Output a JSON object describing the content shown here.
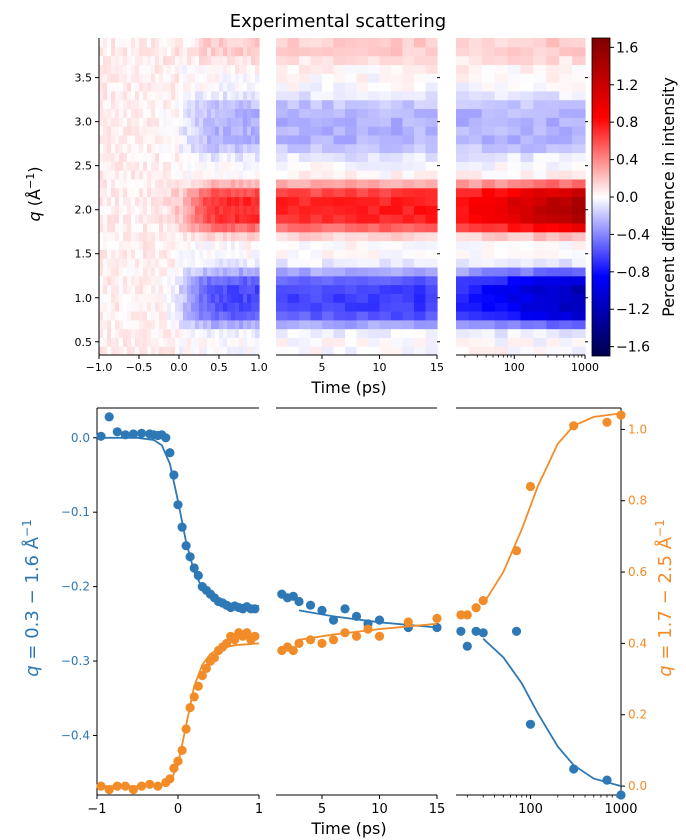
{
  "figure": {
    "title": "Experimental scattering",
    "xlabel_top": "Time (ps)",
    "xlabel_bottom": "Time (ps)"
  },
  "chart_data": [
    {
      "type": "heatmap",
      "title": "Experimental scattering",
      "xlabel": "Time (ps)",
      "ylabel": "q (Å⁻¹)",
      "colorbar_label": "Percent difference in intensity",
      "ylim": [
        0.35,
        3.95
      ],
      "colorbar_range": [
        -1.7,
        1.7
      ],
      "colorbar_ticks": [
        1.6,
        1.2,
        0.8,
        0.4,
        0.0,
        -0.4,
        -0.8,
        -1.2,
        -1.6
      ],
      "colorbar_tick_labels": [
        "1.6",
        "1.2",
        "0.8",
        "0.4",
        "0.0",
        "−0.4",
        "−0.8",
        "−1.2",
        "−1.6"
      ],
      "y_ticks": [
        0.5,
        1.0,
        1.5,
        2.0,
        2.5,
        3.0,
        3.5
      ],
      "y_tick_labels": [
        "0.5",
        "1.0",
        "1.5",
        "2.0",
        "2.5",
        "3.0",
        "3.5"
      ],
      "panels": [
        {
          "scale": "linear",
          "xlim": [
            -1,
            1
          ],
          "ticks": [
            -1,
            -0.5,
            0,
            0.5,
            1
          ],
          "tick_labels": [
            "−1.0",
            "−0.5",
            "0.0",
            "0.5",
            "1.0"
          ]
        },
        {
          "scale": "linear",
          "xlim": [
            1,
            15
          ],
          "ticks": [
            5,
            10,
            15
          ],
          "tick_labels": [
            "5",
            "10",
            "15"
          ]
        },
        {
          "scale": "log",
          "xlim": [
            15,
            1000
          ],
          "ticks": [
            100,
            1000
          ],
          "tick_labels": [
            "100",
            "1000"
          ]
        }
      ],
      "colormap": "seismic (blue-white-red)",
      "bands": [
        {
          "q_range": [
            0.35,
            1.5
          ],
          "sign": "negative",
          "max_abs": -1.5
        },
        {
          "q_range": [
            1.65,
            2.45
          ],
          "sign": "positive",
          "max_abs": 1.6
        },
        {
          "q_range": [
            2.55,
            3.35
          ],
          "sign": "negative",
          "max_abs": -0.4
        },
        {
          "q_range": [
            3.6,
            3.95
          ],
          "sign": "positive",
          "max_abs": 0.3
        }
      ]
    },
    {
      "type": "scatter",
      "xlabel": "Time (ps)",
      "ylabel_left": "q = 0.3 − 1.6 Å⁻¹",
      "ylabel_right": "q = 1.7 − 2.5 Å⁻¹",
      "ylim_left": [
        -0.48,
        0.04
      ],
      "ylim_right": [
        -0.025,
        1.06
      ],
      "y_ticks_left": [
        0.0,
        -0.1,
        -0.2,
        -0.3,
        -0.4
      ],
      "y_tick_labels_left": [
        "0.0",
        "−0.1",
        "−0.2",
        "−0.3",
        "−0.4"
      ],
      "y_ticks_right": [
        0.0,
        0.2,
        0.4,
        0.6,
        0.8,
        1.0
      ],
      "y_tick_labels_right": [
        "0.0",
        "0.2",
        "0.4",
        "0.6",
        "0.8",
        "1.0"
      ],
      "panels": [
        {
          "scale": "linear",
          "xlim": [
            -1,
            1
          ],
          "ticks": [
            -1,
            0,
            1
          ],
          "tick_labels": [
            "−1",
            "0",
            "1"
          ]
        },
        {
          "scale": "linear",
          "xlim": [
            1,
            15
          ],
          "ticks": [
            5,
            10,
            15
          ],
          "tick_labels": [
            "5",
            "10",
            "15"
          ]
        },
        {
          "scale": "log",
          "xlim": [
            15,
            1000
          ],
          "ticks": [
            100,
            1000
          ],
          "tick_labels": [
            "100",
            "1000"
          ]
        }
      ],
      "colors": {
        "blue": "#2e79b5",
        "orange": "#f28c28"
      },
      "series": [
        {
          "axis": "left",
          "color": "#2e79b5",
          "x": [
            -0.95,
            -0.85,
            -0.75,
            -0.65,
            -0.55,
            -0.45,
            -0.35,
            -0.3,
            -0.25,
            -0.2,
            -0.15,
            -0.1,
            -0.05,
            0.0,
            0.05,
            0.1,
            0.15,
            0.2,
            0.25,
            0.3,
            0.35,
            0.4,
            0.45,
            0.5,
            0.55,
            0.6,
            0.65,
            0.7,
            0.75,
            0.8,
            0.85,
            0.9,
            0.95,
            1.5,
            2,
            2.5,
            3,
            4,
            5,
            6,
            7,
            8,
            9,
            10,
            12.5,
            15,
            17,
            20,
            25,
            30,
            70,
            100,
            300,
            700,
            1000
          ],
          "y": [
            0.002,
            0.028,
            0.008,
            0.004,
            0.005,
            0.006,
            0.005,
            0.004,
            0.003,
            0.004,
            0.0,
            -0.02,
            -0.05,
            -0.09,
            -0.12,
            -0.145,
            -0.16,
            -0.175,
            -0.185,
            -0.2,
            -0.205,
            -0.21,
            -0.215,
            -0.22,
            -0.222,
            -0.225,
            -0.228,
            -0.226,
            -0.228,
            -0.23,
            -0.227,
            -0.23,
            -0.23,
            -0.21,
            -0.215,
            -0.213,
            -0.22,
            -0.225,
            -0.232,
            -0.245,
            -0.23,
            -0.24,
            -0.25,
            -0.245,
            -0.255,
            -0.255,
            -0.26,
            -0.28,
            -0.26,
            -0.262,
            -0.26,
            -0.385,
            -0.445,
            -0.46,
            -0.48
          ],
          "fit_x": [
            -1,
            -0.5,
            -0.3,
            -0.2,
            -0.1,
            0.0,
            0.1,
            0.2,
            0.3,
            0.4,
            0.5,
            0.7,
            1.0,
            3,
            6,
            10,
            15,
            30,
            50,
            80,
            120,
            200,
            300,
            500,
            1000
          ],
          "fit_y": [
            0.0,
            0.0,
            -0.003,
            -0.01,
            -0.035,
            -0.085,
            -0.14,
            -0.18,
            -0.202,
            -0.213,
            -0.219,
            -0.224,
            -0.226,
            -0.232,
            -0.24,
            -0.248,
            -0.255,
            -0.27,
            -0.295,
            -0.33,
            -0.37,
            -0.415,
            -0.44,
            -0.458,
            -0.468
          ]
        },
        {
          "axis": "right",
          "color": "#f28c28",
          "x": [
            -0.95,
            -0.85,
            -0.75,
            -0.65,
            -0.55,
            -0.45,
            -0.35,
            -0.25,
            -0.15,
            -0.1,
            -0.05,
            0.0,
            0.05,
            0.1,
            0.15,
            0.2,
            0.25,
            0.3,
            0.35,
            0.4,
            0.45,
            0.5,
            0.55,
            0.6,
            0.65,
            0.7,
            0.75,
            0.8,
            0.85,
            0.9,
            0.95,
            1.5,
            2,
            2.5,
            3,
            4,
            5,
            6,
            7,
            8,
            9,
            10,
            12.5,
            15,
            17,
            20,
            25,
            30,
            70,
            100,
            300,
            700,
            1000
          ],
          "y": [
            0.0,
            -0.01,
            0.0,
            0.0,
            -0.01,
            0.0,
            0.005,
            0.0,
            0.01,
            0.02,
            0.05,
            0.07,
            0.1,
            0.16,
            0.22,
            0.25,
            0.28,
            0.31,
            0.33,
            0.35,
            0.36,
            0.38,
            0.39,
            0.4,
            0.42,
            0.41,
            0.43,
            0.42,
            0.43,
            0.41,
            0.42,
            0.38,
            0.39,
            0.38,
            0.4,
            0.41,
            0.4,
            0.41,
            0.43,
            0.42,
            0.44,
            0.42,
            0.46,
            0.47,
            0.48,
            0.48,
            0.5,
            0.52,
            0.66,
            0.84,
            1.01,
            1.02,
            1.04
          ],
          "fit_x": [
            -1,
            -0.3,
            -0.1,
            0.0,
            0.1,
            0.2,
            0.3,
            0.4,
            0.5,
            0.7,
            1.0,
            3,
            6,
            10,
            15,
            30,
            50,
            80,
            120,
            200,
            300,
            500,
            1000
          ],
          "fit_y": [
            0.0,
            0.0,
            0.01,
            0.06,
            0.17,
            0.28,
            0.34,
            0.37,
            0.385,
            0.395,
            0.4,
            0.41,
            0.425,
            0.44,
            0.455,
            0.51,
            0.6,
            0.72,
            0.84,
            0.96,
            1.01,
            1.035,
            1.045
          ]
        }
      ]
    }
  ]
}
